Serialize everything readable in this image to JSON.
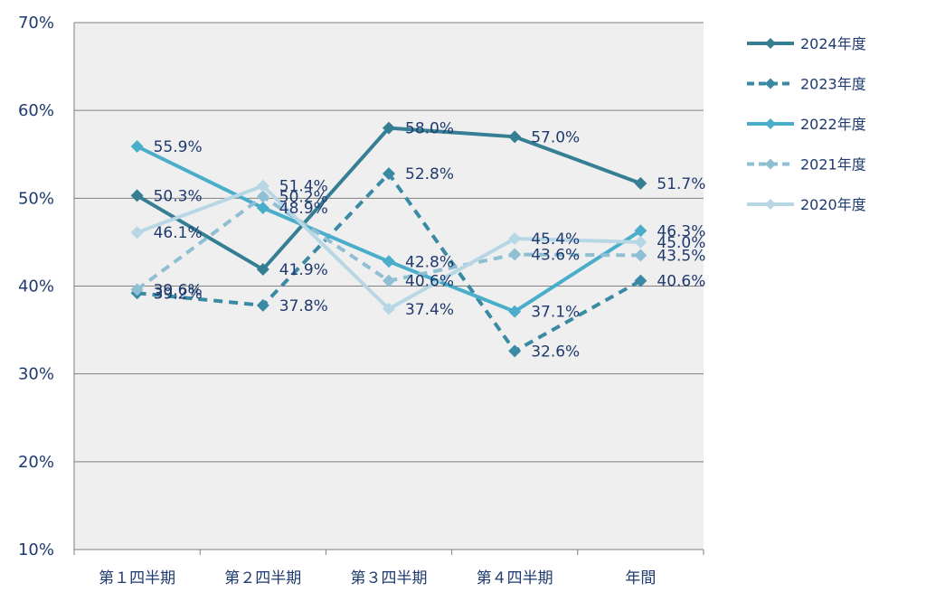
{
  "chart_data": {
    "type": "line",
    "categories": [
      "第１四半期",
      "第２四半期",
      "第３四半期",
      "第４四半期",
      "年間"
    ],
    "ylim": [
      10,
      70
    ],
    "yticks": [
      "10%",
      "20%",
      "30%",
      "40%",
      "50%",
      "60%",
      "70%"
    ],
    "ytick_values": [
      10,
      20,
      30,
      40,
      50,
      60,
      70
    ],
    "grid": true,
    "legend_position": "right",
    "series": [
      {
        "name": "2024年度",
        "color": "#357e94",
        "dashed": false,
        "values": [
          50.3,
          41.9,
          58.0,
          57.0,
          51.7
        ],
        "labels": [
          "50.3%",
          "41.9%",
          "58.0%",
          "57.0%",
          "51.7%"
        ]
      },
      {
        "name": "2023年度",
        "color": "#3a8aa4",
        "dashed": true,
        "values": [
          39.2,
          37.8,
          52.8,
          32.6,
          40.6
        ],
        "labels": [
          "39.2%",
          "37.8%",
          "52.8%",
          "32.6%",
          "40.6%"
        ]
      },
      {
        "name": "2022年度",
        "color": "#4aaecb",
        "dashed": false,
        "values": [
          55.9,
          48.9,
          42.8,
          37.1,
          46.3
        ],
        "labels": [
          "55.9%",
          "48.9%",
          "42.8%",
          "37.1%",
          "46.3%"
        ]
      },
      {
        "name": "2021年度",
        "color": "#8fbfd2",
        "dashed": true,
        "values": [
          39.6,
          50.2,
          40.6,
          43.6,
          43.5
        ],
        "labels": [
          "39.6%",
          "50.2%",
          "40.6%",
          "43.6%",
          "43.5%"
        ]
      },
      {
        "name": "2020年度",
        "color": "#b7d7e5",
        "dashed": false,
        "values": [
          46.1,
          51.4,
          37.4,
          45.4,
          45.0
        ],
        "labels": [
          "46.1%",
          "51.4%",
          "37.4%",
          "45.4%",
          "45.0%"
        ]
      }
    ]
  }
}
